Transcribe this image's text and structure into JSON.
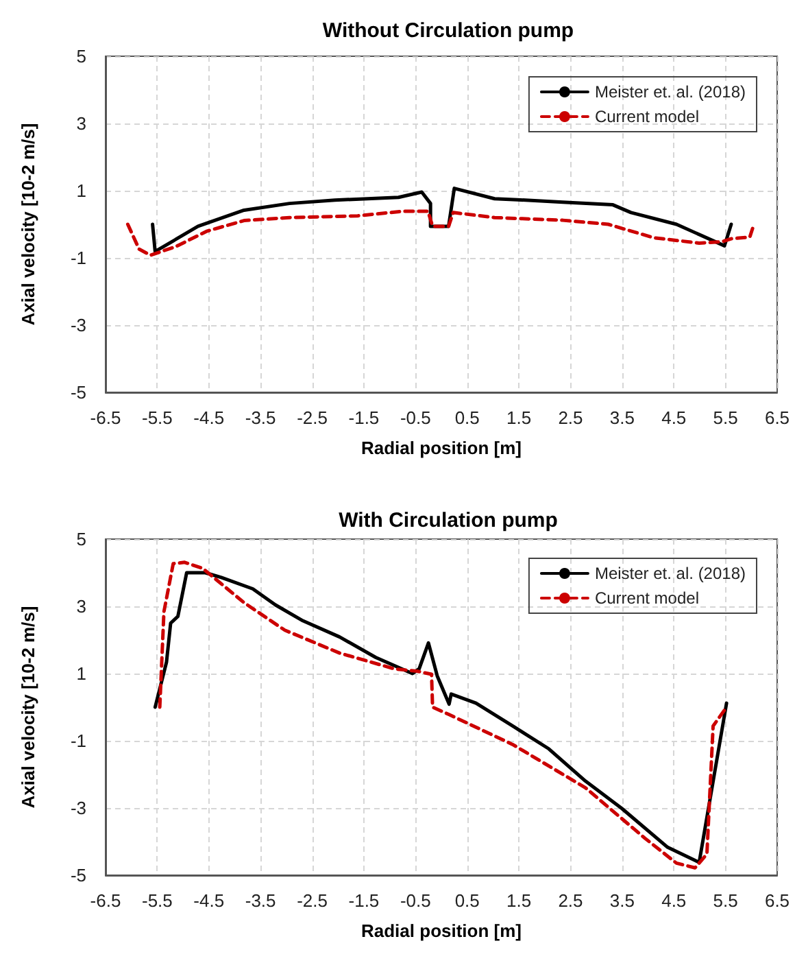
{
  "chart_data": [
    {
      "type": "line",
      "title": "Without Circulation pump",
      "xlabel": "Radial position [m]",
      "ylabel": "Axial velocity [10-2 m/s]",
      "xlim": [
        -6.5,
        6.5
      ],
      "xticks": [
        -6.5,
        -5.5,
        -4.5,
        -3.5,
        -2.5,
        -1.5,
        -0.5,
        0.5,
        1.5,
        2.5,
        3.5,
        4.5,
        5.5,
        6.5
      ],
      "ylim": [
        -5,
        5
      ],
      "yticks": [
        -5,
        -3,
        -1,
        1,
        3,
        5
      ],
      "grid": true,
      "legend": "top right",
      "marker": "none",
      "series": [
        {
          "name": "Meister et. al. (2018)",
          "color": "#000000",
          "line_style": "solid",
          "x": [
            -5.59,
            -5.54,
            -4.71,
            -3.82,
            -2.94,
            -2.06,
            -0.83,
            -0.38,
            -0.21,
            -0.21,
            0.14,
            0.25,
            1.03,
            1.47,
            2.35,
            3.32,
            3.67,
            4.55,
            5.48,
            5.61
          ],
          "values": [
            0.0,
            -0.81,
            -0.06,
            0.42,
            0.62,
            0.72,
            0.8,
            0.96,
            0.62,
            -0.06,
            -0.06,
            1.07,
            0.76,
            0.73,
            0.66,
            0.58,
            0.35,
            0.0,
            -0.64,
            0.0
          ]
        },
        {
          "name": "Current model",
          "color": "#cc0000",
          "line_style": "dashed",
          "x": [
            -6.07,
            -5.85,
            -5.63,
            -5.15,
            -4.53,
            -3.82,
            -2.94,
            -1.62,
            -0.74,
            -0.26,
            -0.17,
            0.14,
            0.23,
            1.03,
            2.35,
            3.23,
            4.11,
            4.99,
            5.43,
            5.61,
            5.97,
            6.05
          ],
          "values": [
            0.0,
            -0.74,
            -0.92,
            -0.67,
            -0.2,
            0.11,
            0.2,
            0.25,
            0.39,
            0.39,
            -0.06,
            -0.06,
            0.35,
            0.2,
            0.12,
            0.0,
            -0.4,
            -0.56,
            -0.52,
            -0.43,
            -0.38,
            0.0
          ]
        }
      ]
    },
    {
      "type": "line",
      "title": "With Circulation pump",
      "xlabel": "Radial position [m]",
      "ylabel": "Axial velocity [10-2 m/s]",
      "xlim": [
        -6.5,
        6.5
      ],
      "xticks": [
        -6.5,
        -5.5,
        -4.5,
        -3.5,
        -2.5,
        -1.5,
        -0.5,
        0.5,
        1.5,
        2.5,
        3.5,
        4.5,
        5.5,
        6.5
      ],
      "ylim": [
        -5,
        5
      ],
      "yticks": [
        -5,
        -3,
        -1,
        1,
        3,
        5
      ],
      "grid": true,
      "legend": "top right",
      "marker": "none",
      "series": [
        {
          "name": "Meister et. al. (2018)",
          "color": "#000000",
          "line_style": "solid",
          "x": [
            -5.54,
            -5.32,
            -5.24,
            -5.1,
            -4.93,
            -4.57,
            -4.26,
            -3.65,
            -3.21,
            -2.68,
            -1.97,
            -1.27,
            -0.56,
            -0.43,
            -0.25,
            -0.08,
            0.15,
            0.19,
            0.67,
            1.38,
            2.08,
            2.79,
            3.49,
            4.38,
            4.99,
            5.17,
            5.52
          ],
          "values": [
            0.0,
            1.34,
            2.5,
            2.7,
            4.0,
            4.0,
            3.86,
            3.52,
            3.04,
            2.57,
            2.09,
            1.48,
            1.0,
            1.14,
            1.91,
            0.93,
            0.09,
            0.39,
            0.12,
            -0.56,
            -1.24,
            -2.2,
            -3.01,
            -4.17,
            -4.62,
            -3.01,
            0.12
          ]
        },
        {
          "name": "Current model",
          "color": "#cc0000",
          "line_style": "dashed",
          "x": [
            -5.45,
            -5.37,
            -5.19,
            -4.97,
            -4.62,
            -3.82,
            -3.03,
            -1.97,
            -0.91,
            -0.47,
            -0.19,
            -0.17,
            0.15,
            1.38,
            2.79,
            3.94,
            4.55,
            4.91,
            5.14,
            5.26,
            5.52
          ],
          "values": [
            0.0,
            2.84,
            4.27,
            4.31,
            4.13,
            3.11,
            2.29,
            1.61,
            1.14,
            1.07,
            0.98,
            0.0,
            -0.22,
            -1.11,
            -2.4,
            -3.9,
            -4.64,
            -4.78,
            -4.37,
            -0.56,
            0.0
          ]
        }
      ]
    }
  ]
}
